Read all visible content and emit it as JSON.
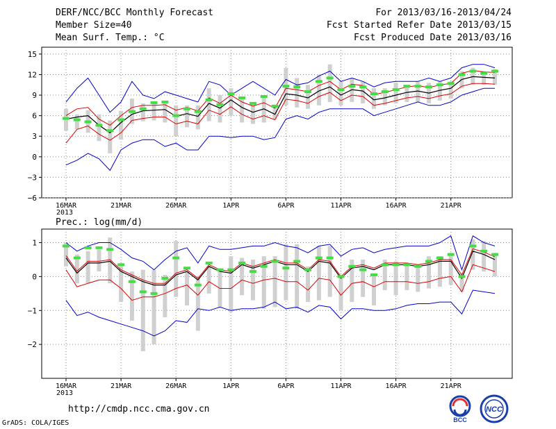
{
  "header": {
    "title": "DERF/NCC/BCC Monthly Forecast",
    "member_size": "Member Size=40",
    "variable_top": "Mean Surf. Temp.: °C",
    "period": "For 2013/03/16-2013/04/24",
    "started": "Fcst Started Refer Date 2013/03/15",
    "produced": "Fcst Produced Date 2013/03/16"
  },
  "footer": {
    "url": "http://cmdp.ncc.cma.gov.cn",
    "credit": "GrADS: COLA/IGES",
    "logo1_text": "BCC",
    "logo2_text": "NCC"
  },
  "colors": {
    "ensemble_mean": "#000000",
    "spread": "#dd0000",
    "extreme": "#0000cc",
    "box": "#d0d0d0",
    "observed": "#44dd44"
  },
  "chart_data": [
    {
      "type": "line",
      "title": "Mean Surf. Temp.: °C",
      "ylim": [
        -6,
        16
      ],
      "yticks": [
        -6,
        -3,
        0,
        3,
        6,
        9,
        12,
        15
      ],
      "ytick_labels": [
        "−6",
        "−3",
        "0",
        "3",
        "6",
        "9",
        "12",
        "15"
      ],
      "xlim": [
        1,
        40
      ],
      "x_ticks": [
        1,
        6,
        11,
        16,
        21,
        26,
        31,
        36
      ],
      "x_tick_labels": [
        "16MAR",
        "21MAR",
        "26MAR",
        "1APR",
        "6APR",
        "11APR",
        "16APR",
        "21APR"
      ],
      "x_sub_label": "2013",
      "series": [
        {
          "name": "ensemble_mean",
          "values": [
            5.5,
            5.8,
            6.0,
            4.6,
            3.5,
            5.0,
            6.2,
            6.7,
            6.8,
            6.9,
            5.9,
            6.3,
            5.9,
            7.8,
            7.1,
            8.3,
            7.2,
            6.5,
            7.0,
            6.2,
            9.2,
            9.0,
            8.6,
            9.6,
            10.2,
            9.0,
            9.8,
            9.6,
            8.3,
            8.6,
            9.0,
            9.4,
            9.6,
            9.3,
            9.7,
            10.0,
            11.3,
            11.7,
            11.6,
            11.5
          ]
        },
        {
          "name": "spread_upper",
          "values": [
            6.0,
            7.0,
            7.2,
            5.5,
            4.6,
            6.0,
            7.2,
            7.5,
            7.5,
            7.6,
            6.8,
            7.2,
            6.7,
            8.6,
            7.8,
            9.0,
            8.0,
            7.4,
            7.9,
            7.1,
            10.0,
            9.8,
            9.5,
            10.4,
            11.0,
            9.8,
            10.6,
            10.4,
            9.1,
            9.4,
            9.8,
            10.2,
            10.4,
            10.1,
            10.5,
            10.7,
            12.2,
            12.6,
            12.4,
            12.3
          ]
        },
        {
          "name": "spread_lower",
          "values": [
            2.0,
            4.0,
            4.5,
            3.3,
            2.4,
            3.5,
            5.3,
            5.6,
            5.8,
            5.8,
            4.8,
            5.2,
            4.8,
            6.8,
            6.2,
            7.3,
            6.2,
            5.5,
            6.0,
            5.4,
            8.4,
            8.2,
            7.8,
            8.8,
            9.4,
            8.2,
            9.0,
            8.8,
            7.5,
            7.8,
            8.2,
            8.6,
            8.8,
            8.5,
            8.9,
            9.2,
            10.3,
            10.7,
            10.7,
            10.6
          ]
        },
        {
          "name": "member_max",
          "values": [
            8.0,
            10.0,
            11.5,
            9.0,
            6.5,
            8.0,
            11.0,
            9.0,
            8.5,
            9.5,
            9.0,
            8.5,
            8.0,
            11.0,
            10.5,
            9.0,
            10.0,
            11.0,
            10.0,
            9.0,
            11.3,
            10.5,
            10.8,
            11.8,
            12.5,
            11.0,
            11.5,
            11.0,
            10.2,
            10.8,
            11.0,
            11.0,
            11.0,
            11.5,
            11.0,
            11.5,
            13.0,
            13.5,
            13.5,
            13.0
          ]
        },
        {
          "name": "member_min",
          "values": [
            -1.2,
            -0.5,
            0.5,
            -0.3,
            -2.0,
            1.0,
            2.0,
            2.5,
            2.5,
            1.5,
            2.0,
            1.0,
            1.0,
            3.0,
            3.0,
            2.8,
            3.0,
            3.0,
            2.5,
            2.8,
            5.5,
            6.0,
            5.5,
            6.5,
            7.0,
            7.0,
            7.0,
            7.0,
            6.0,
            6.5,
            7.0,
            7.5,
            8.0,
            7.5,
            7.5,
            8.0,
            9.0,
            9.5,
            10.0,
            10.0
          ]
        },
        {
          "name": "observed",
          "values": [
            5.6,
            5.4,
            5.1,
            4.6,
            3.8,
            5.4,
            6.6,
            7.0,
            7.9,
            8.0,
            6.0,
            7.0,
            6.6,
            8.3,
            7.6,
            9.2,
            8.6,
            7.8,
            8.8,
            7.4,
            10.3,
            10.2,
            9.5,
            11.0,
            11.5,
            9.8,
            10.3,
            10.2,
            9.2,
            9.5,
            9.8,
            10.3,
            10.3,
            10.2,
            10.5,
            10.7,
            12.0,
            12.5,
            12.2,
            12.5
          ]
        },
        {
          "name": "box_top",
          "values": [
            7.0,
            6.2,
            6.8,
            6.2,
            5.3,
            6.7,
            8.5,
            7.8,
            8.0,
            8.2,
            7.5,
            7.5,
            7.5,
            10.0,
            9.0,
            10.0,
            8.5,
            8.0,
            9.0,
            7.5,
            13.0,
            11.5,
            10.5,
            12.0,
            13.5,
            11.0,
            11.5,
            11.0,
            10.0,
            10.0,
            10.8,
            10.5,
            11.0,
            10.8,
            11.0,
            11.0,
            12.5,
            13.0,
            12.5,
            12.8
          ]
        },
        {
          "name": "box_bottom",
          "values": [
            3.8,
            4.0,
            3.5,
            2.3,
            0.5,
            2.5,
            4.8,
            5.2,
            5.3,
            5.0,
            3.0,
            4.3,
            4.0,
            5.2,
            5.0,
            6.0,
            5.0,
            4.8,
            5.0,
            5.5,
            7.5,
            7.2,
            7.0,
            7.5,
            8.0,
            7.5,
            8.0,
            7.8,
            7.0,
            7.5,
            7.8,
            8.0,
            8.0,
            7.8,
            8.2,
            8.5,
            10.0,
            10.5,
            10.5,
            10.5
          ]
        }
      ]
    },
    {
      "type": "line",
      "title": "Prec.: log(mm/d)",
      "ylim": [
        -3,
        1.4
      ],
      "yticks": [
        -2,
        -1,
        0,
        1
      ],
      "ytick_labels": [
        "−2",
        "−1",
        "0",
        "1"
      ],
      "xlim": [
        1,
        40
      ],
      "x_ticks": [
        1,
        6,
        11,
        16,
        21,
        26,
        31,
        36
      ],
      "x_tick_labels": [
        "16MAR",
        "21MAR",
        "26MAR",
        "1APR",
        "6APR",
        "11APR",
        "16APR",
        "21APR"
      ],
      "x_sub_label": "2013",
      "series": [
        {
          "name": "ensemble_mean",
          "values": [
            0.55,
            0.1,
            0.4,
            0.4,
            0.45,
            0.15,
            0.0,
            -0.15,
            -0.25,
            -0.25,
            0.05,
            0.15,
            -0.1,
            0.3,
            0.15,
            0.1,
            0.35,
            0.25,
            0.35,
            0.45,
            0.35,
            0.35,
            0.15,
            0.45,
            0.4,
            -0.05,
            0.25,
            0.3,
            0.2,
            0.35,
            0.35,
            0.35,
            0.3,
            0.35,
            0.45,
            0.45,
            -0.05,
            0.75,
            0.65,
            0.5
          ]
        },
        {
          "name": "spread_upper",
          "values": [
            0.62,
            0.16,
            0.45,
            0.45,
            0.5,
            0.2,
            0.05,
            -0.1,
            -0.2,
            -0.2,
            0.1,
            0.2,
            -0.05,
            0.35,
            0.2,
            0.15,
            0.4,
            0.3,
            0.4,
            0.5,
            0.4,
            0.4,
            0.2,
            0.5,
            0.45,
            0.0,
            0.3,
            0.35,
            0.25,
            0.4,
            0.4,
            0.4,
            0.35,
            0.4,
            0.5,
            0.5,
            0.05,
            0.82,
            0.72,
            0.58
          ]
        },
        {
          "name": "spread_lower",
          "values": [
            0.2,
            -0.3,
            -0.2,
            -0.1,
            -0.1,
            -0.35,
            -0.7,
            -0.6,
            -0.6,
            -0.5,
            -0.35,
            -0.25,
            -0.55,
            -0.15,
            -0.35,
            -0.35,
            -0.1,
            -0.2,
            -0.1,
            -0.05,
            -0.15,
            -0.15,
            -0.4,
            -0.05,
            -0.1,
            -0.55,
            -0.2,
            -0.15,
            -0.3,
            -0.15,
            -0.15,
            -0.15,
            -0.2,
            -0.15,
            -0.05,
            0.0,
            -0.45,
            0.35,
            0.25,
            0.15
          ]
        },
        {
          "name": "member_max",
          "values": [
            1.0,
            0.75,
            0.9,
            1.0,
            1.0,
            0.8,
            0.55,
            0.45,
            0.2,
            0.5,
            0.75,
            0.85,
            0.4,
            0.9,
            0.8,
            0.8,
            0.85,
            0.9,
            0.9,
            1.0,
            0.9,
            0.85,
            0.7,
            0.9,
            0.95,
            0.6,
            0.8,
            0.85,
            0.7,
            0.8,
            0.85,
            0.9,
            0.9,
            0.9,
            1.0,
            1.2,
            0.2,
            1.2,
            1.0,
            0.9
          ]
        },
        {
          "name": "member_min",
          "values": [
            -0.7,
            -1.15,
            -1.05,
            -1.2,
            -1.3,
            -1.4,
            -1.5,
            -1.6,
            -1.75,
            -1.6,
            -1.3,
            -1.35,
            -0.95,
            -1.0,
            -0.9,
            -1.0,
            -0.95,
            -0.95,
            -0.9,
            -0.75,
            -0.95,
            -0.9,
            -1.05,
            -0.85,
            -0.9,
            -1.25,
            -0.95,
            -0.95,
            -1.0,
            -1.0,
            -0.95,
            -0.85,
            -0.8,
            -0.8,
            -0.75,
            -0.75,
            -1.1,
            -0.4,
            -0.45,
            -0.5
          ]
        },
        {
          "name": "observed",
          "values": [
            0.9,
            0.55,
            0.85,
            0.85,
            0.8,
            0.35,
            -0.15,
            -0.45,
            -0.5,
            -0.05,
            0.55,
            0.25,
            -0.25,
            0.4,
            0.2,
            0.2,
            0.4,
            0.15,
            0.3,
            0.45,
            0.25,
            0.45,
            0.2,
            0.55,
            0.55,
            0.0,
            0.3,
            0.2,
            0.05,
            0.35,
            0.35,
            0.35,
            0.3,
            0.45,
            0.55,
            0.65,
            0.0,
            0.9,
            0.75,
            0.65
          ]
        },
        {
          "name": "box_top",
          "values": [
            1.0,
            0.65,
            0.75,
            0.8,
            1.15,
            0.3,
            0.15,
            0.2,
            0.2,
            0.05,
            1.05,
            0.15,
            0.0,
            0.3,
            0.2,
            0.6,
            0.55,
            0.5,
            0.6,
            0.6,
            0.95,
            0.95,
            0.3,
            0.9,
            0.9,
            0.05,
            0.5,
            0.5,
            0.1,
            0.5,
            0.45,
            0.4,
            0.35,
            0.6,
            0.6,
            0.7,
            0.1,
            1.1,
            1.05,
            0.7
          ]
        },
        {
          "name": "box_bottom",
          "values": [
            0.3,
            -0.2,
            -0.2,
            0.15,
            -0.2,
            -0.75,
            -1.3,
            -2.2,
            -2.0,
            -1.2,
            -0.6,
            -0.85,
            -1.6,
            -0.5,
            -0.9,
            -1.05,
            -0.55,
            -0.7,
            -0.95,
            -0.9,
            -0.7,
            -0.95,
            -0.75,
            -0.7,
            -0.6,
            -1.0,
            -0.75,
            -0.6,
            -0.85,
            -0.4,
            -0.55,
            -0.4,
            -0.45,
            -0.35,
            -0.3,
            -0.25,
            -0.45,
            0.2,
            0.15,
            0.0
          ]
        }
      ]
    }
  ]
}
